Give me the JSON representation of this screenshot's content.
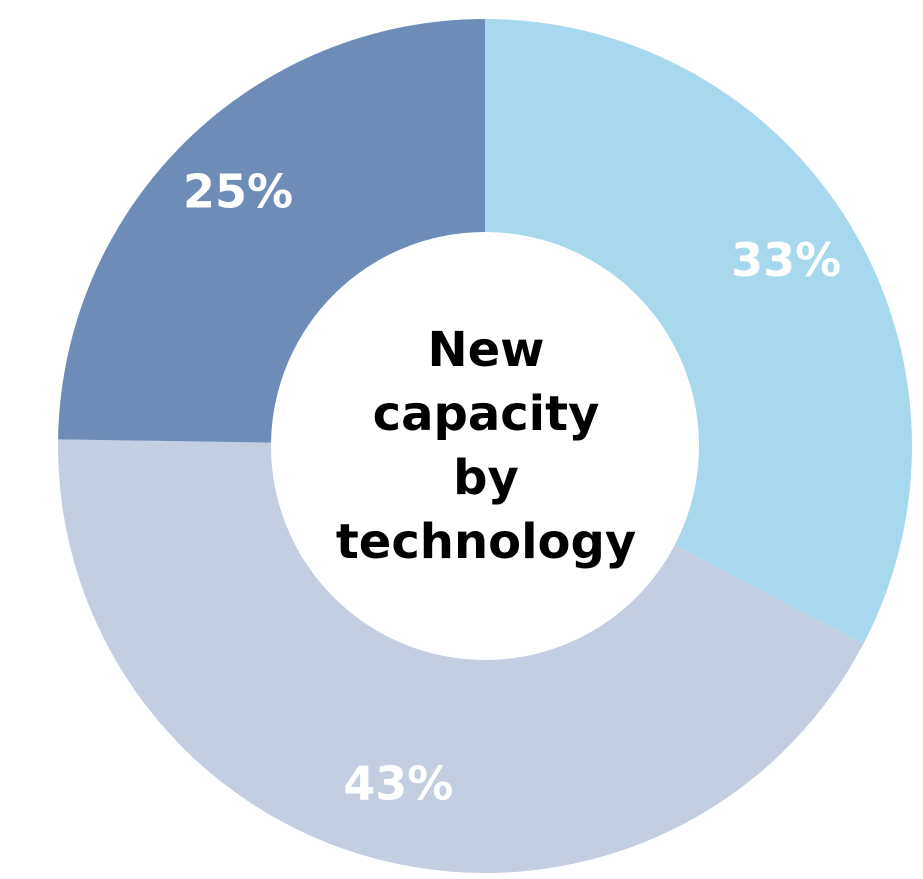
{
  "chart_data": {
    "type": "pie",
    "title": "New capacity by technology",
    "slices": [
      {
        "label": "33%",
        "value": 33,
        "color": "#a8d8ee"
      },
      {
        "label": "43%",
        "value": 43,
        "color": "#c3cee1"
      },
      {
        "label": "25%",
        "value": 25,
        "color": "#6d8db8"
      }
    ]
  },
  "center": {
    "line1": "New",
    "line2": "capacity",
    "line3": "by",
    "line4": "technology"
  }
}
